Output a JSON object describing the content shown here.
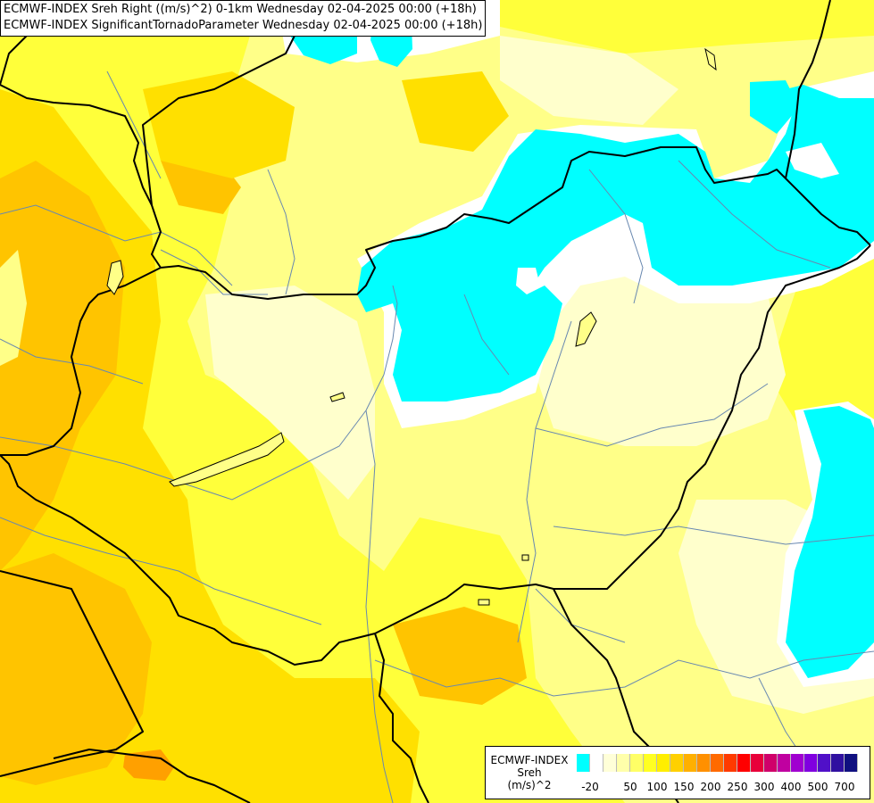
{
  "titles": [
    "ECMWF-INDEX Sreh Right ((m/s)^2) 0-1km Wednesday 02-04-2025 00:00 (+18h)",
    "ECMWF-INDEX SignificantTornadoParameter Wednesday 02-04-2025 00:00 (+18h)"
  ],
  "legend": {
    "line1": "ECMWF-INDEX",
    "line2": "Sreh",
    "line3": "(m/s)^2",
    "swatch_colors": [
      "#00ffff",
      "#ffffff",
      "#ffffd8",
      "#ffffaa",
      "#ffff66",
      "#ffff22",
      "#ffee00",
      "#ffd000",
      "#ffb000",
      "#ff9000",
      "#ff6a00",
      "#ff3a00",
      "#ff0000",
      "#e8003a",
      "#d0006a",
      "#c000a0",
      "#a000d0",
      "#8000e0",
      "#5010c8",
      "#3010a0",
      "#101080"
    ],
    "ticks": [
      "-20",
      "50",
      "100",
      "150",
      "200",
      "250",
      "300",
      "400",
      "500",
      "700"
    ]
  },
  "colors": {
    "cyan": "#00ffff",
    "white": "#ffffff",
    "pale": "#ffffcc",
    "light": "#ffff99",
    "yellow": "#ffff33",
    "golden": "#ffe000",
    "orange": "#ffc000",
    "dark_orange": "#ffa000",
    "border": "#000000",
    "river": "#6888b0"
  }
}
